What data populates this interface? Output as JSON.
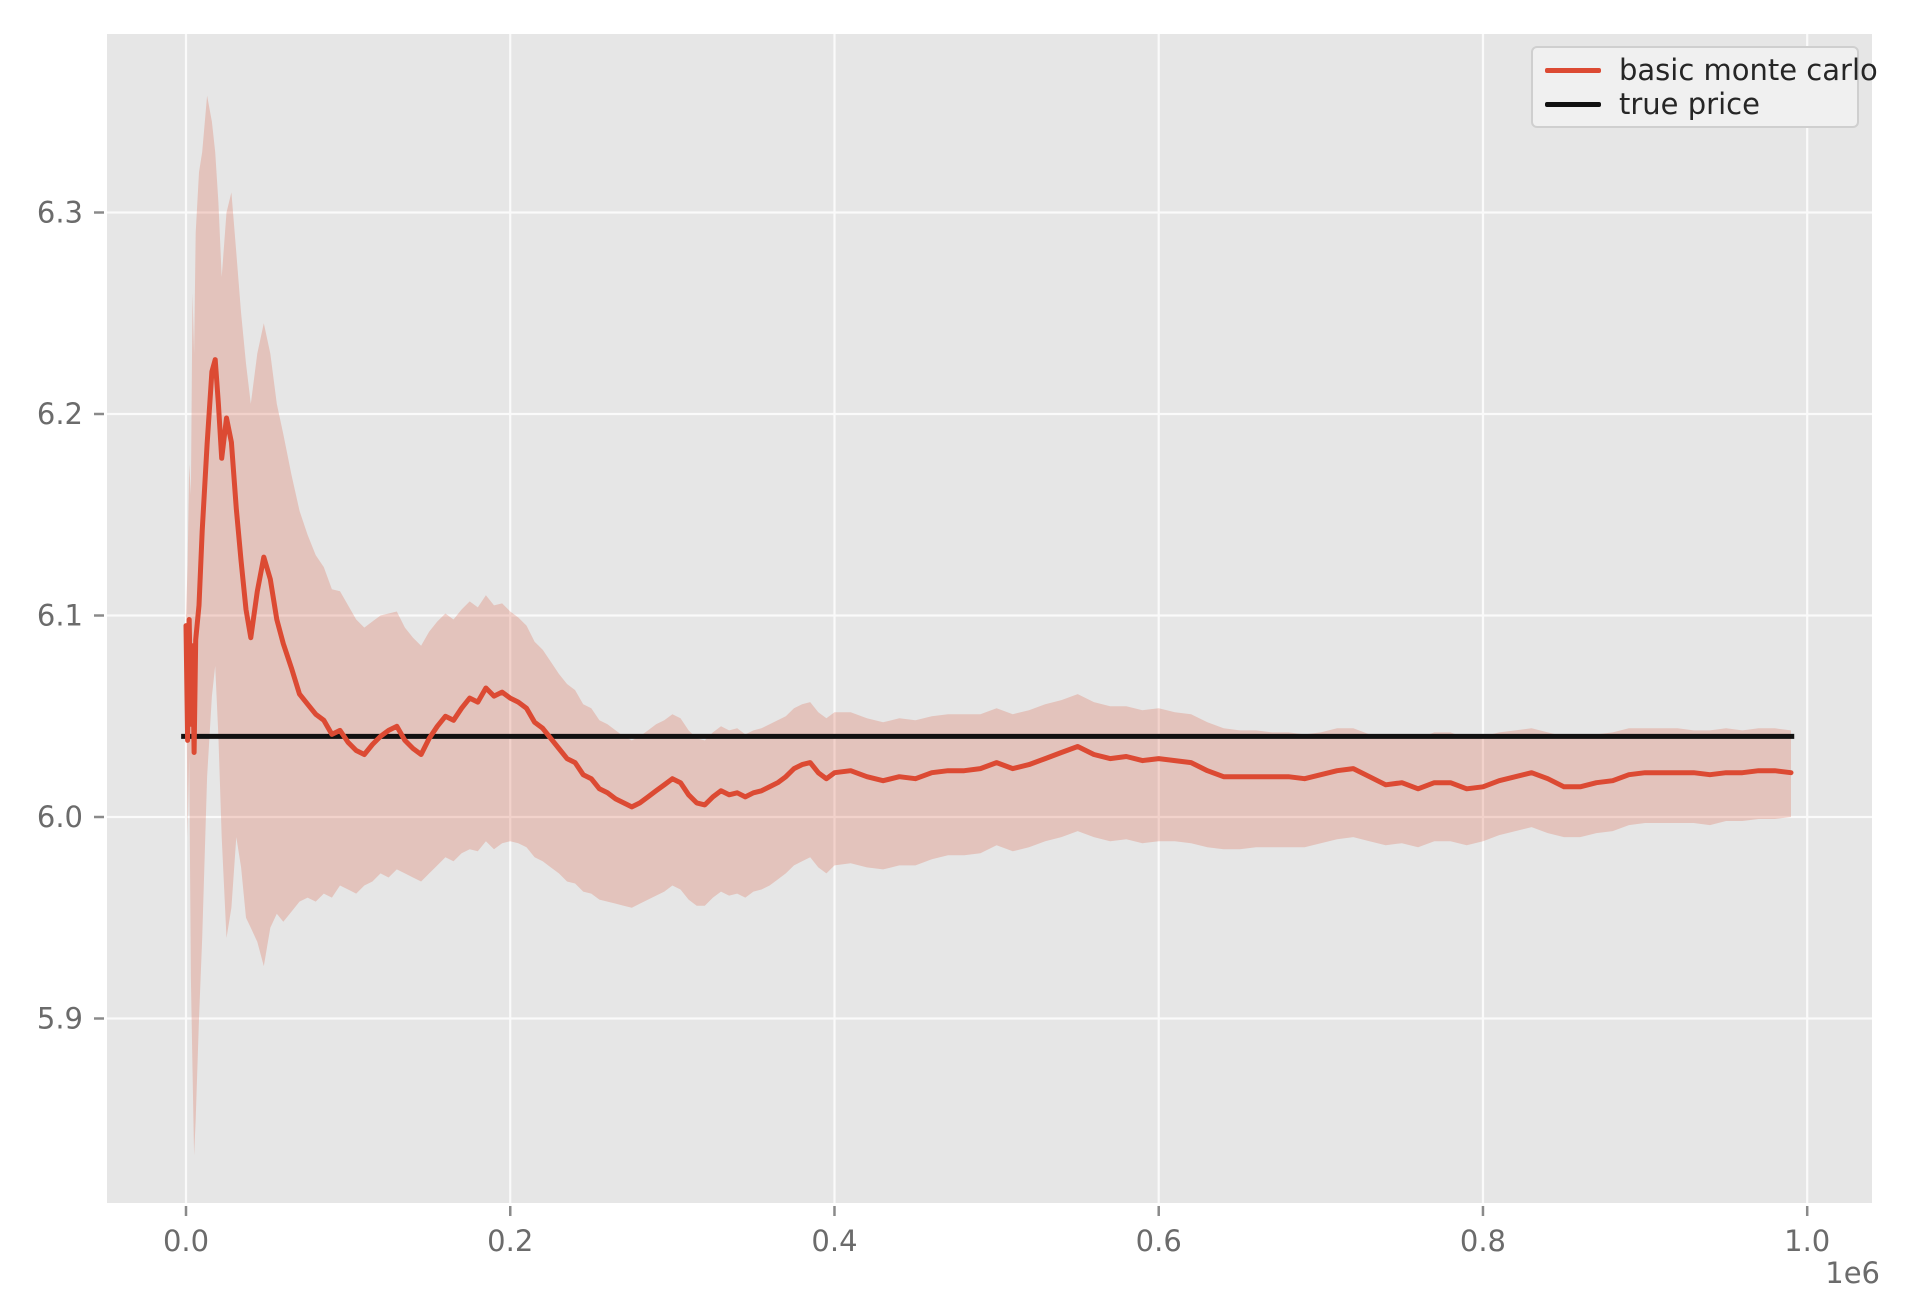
{
  "figure": {
    "background": "#ffffff",
    "axes_background": "#e6e6e6",
    "grid_color": "#fafafa",
    "tick_mark_color": "#8a8a8a",
    "tick_label_color": "#6b6b6b"
  },
  "legend": {
    "background": "#f0f0f0",
    "border_color": "#cfcfcf",
    "text_color": "#262626",
    "items": [
      {
        "label": "basic monte carlo",
        "color": "#DC4A33"
      },
      {
        "label": "true price",
        "color": "#111111"
      }
    ]
  },
  "chart_data": {
    "type": "line",
    "title": "",
    "xlabel": "",
    "ylabel": "",
    "x_scale_label": "1e6",
    "xlim": [
      -0.048,
      1.04
    ],
    "ylim": [
      5.808,
      6.389
    ],
    "x_ticks": [
      0.0,
      0.2,
      0.4,
      0.6,
      0.8,
      1.0
    ],
    "x_tick_labels": [
      "0.0",
      "0.2",
      "0.4",
      "0.6",
      "0.8",
      "1.0"
    ],
    "y_ticks": [
      5.9,
      6.0,
      6.1,
      6.2,
      6.3
    ],
    "y_tick_labels": [
      "5.9",
      "6.0",
      "6.1",
      "6.2",
      "6.3"
    ],
    "grid": true,
    "legend_position": "upper right",
    "true_price": 6.04,
    "series": [
      {
        "name": "basic monte carlo",
        "color": "#DC4A33",
        "line_width": 5,
        "x": [
          0.0,
          0.001,
          0.002,
          0.003,
          0.004,
          0.005,
          0.006,
          0.008,
          0.01,
          0.013,
          0.016,
          0.018,
          0.02,
          0.022,
          0.025,
          0.028,
          0.031,
          0.034,
          0.037,
          0.04,
          0.044,
          0.048,
          0.052,
          0.056,
          0.06,
          0.065,
          0.07,
          0.075,
          0.08,
          0.085,
          0.09,
          0.095,
          0.1,
          0.105,
          0.11,
          0.115,
          0.12,
          0.125,
          0.13,
          0.135,
          0.14,
          0.145,
          0.15,
          0.155,
          0.16,
          0.165,
          0.17,
          0.175,
          0.18,
          0.185,
          0.19,
          0.195,
          0.2,
          0.205,
          0.21,
          0.215,
          0.22,
          0.225,
          0.23,
          0.235,
          0.24,
          0.245,
          0.25,
          0.255,
          0.26,
          0.265,
          0.27,
          0.275,
          0.28,
          0.285,
          0.29,
          0.295,
          0.3,
          0.305,
          0.31,
          0.315,
          0.32,
          0.325,
          0.33,
          0.335,
          0.34,
          0.345,
          0.35,
          0.355,
          0.36,
          0.365,
          0.37,
          0.375,
          0.38,
          0.385,
          0.39,
          0.395,
          0.4,
          0.41,
          0.42,
          0.43,
          0.44,
          0.45,
          0.46,
          0.47,
          0.48,
          0.49,
          0.5,
          0.51,
          0.52,
          0.53,
          0.54,
          0.55,
          0.56,
          0.57,
          0.58,
          0.59,
          0.6,
          0.61,
          0.62,
          0.63,
          0.64,
          0.65,
          0.66,
          0.67,
          0.68,
          0.69,
          0.7,
          0.71,
          0.72,
          0.73,
          0.74,
          0.75,
          0.76,
          0.77,
          0.78,
          0.79,
          0.8,
          0.81,
          0.82,
          0.83,
          0.84,
          0.85,
          0.86,
          0.87,
          0.88,
          0.89,
          0.9,
          0.91,
          0.92,
          0.93,
          0.94,
          0.95,
          0.96,
          0.97,
          0.98,
          0.99
        ],
        "y": [
          6.095,
          6.038,
          6.098,
          6.046,
          6.085,
          6.032,
          6.088,
          6.105,
          6.142,
          6.185,
          6.221,
          6.227,
          6.205,
          6.178,
          6.198,
          6.186,
          6.153,
          6.127,
          6.103,
          6.089,
          6.112,
          6.129,
          6.118,
          6.098,
          6.086,
          6.074,
          6.061,
          6.056,
          6.051,
          6.048,
          6.041,
          6.043,
          6.037,
          6.033,
          6.031,
          6.036,
          6.04,
          6.043,
          6.045,
          6.038,
          6.034,
          6.031,
          6.039,
          6.045,
          6.05,
          6.048,
          6.054,
          6.059,
          6.057,
          6.064,
          6.06,
          6.062,
          6.059,
          6.057,
          6.054,
          6.047,
          6.044,
          6.039,
          6.034,
          6.029,
          6.027,
          6.021,
          6.019,
          6.014,
          6.012,
          6.009,
          6.007,
          6.005,
          6.007,
          6.01,
          6.013,
          6.016,
          6.019,
          6.017,
          6.011,
          6.007,
          6.006,
          6.01,
          6.013,
          6.011,
          6.012,
          6.01,
          6.012,
          6.013,
          6.015,
          6.017,
          6.02,
          6.024,
          6.026,
          6.027,
          6.022,
          6.019,
          6.022,
          6.023,
          6.02,
          6.018,
          6.02,
          6.019,
          6.022,
          6.023,
          6.023,
          6.024,
          6.027,
          6.024,
          6.026,
          6.029,
          6.032,
          6.035,
          6.031,
          6.029,
          6.03,
          6.028,
          6.029,
          6.028,
          6.027,
          6.023,
          6.02,
          6.02,
          6.02,
          6.02,
          6.02,
          6.019,
          6.021,
          6.023,
          6.024,
          6.02,
          6.016,
          6.017,
          6.014,
          6.017,
          6.017,
          6.014,
          6.015,
          6.018,
          6.02,
          6.022,
          6.019,
          6.015,
          6.015,
          6.017,
          6.018,
          6.021,
          6.022,
          6.022,
          6.022,
          6.022,
          6.021,
          6.022,
          6.022,
          6.023,
          6.023,
          6.022
        ],
        "band": {
          "color": "#DD5C40",
          "opacity": 0.25,
          "upper": [
            6.1,
            6.125,
            6.175,
            6.16,
            6.26,
            6.23,
            6.29,
            6.32,
            6.33,
            6.358,
            6.345,
            6.33,
            6.305,
            6.268,
            6.3,
            6.31,
            6.28,
            6.25,
            6.225,
            6.205,
            6.23,
            6.245,
            6.23,
            6.205,
            6.19,
            6.17,
            6.152,
            6.14,
            6.13,
            6.124,
            6.113,
            6.112,
            6.105,
            6.098,
            6.094,
            6.097,
            6.1,
            6.101,
            6.102,
            6.094,
            6.089,
            6.085,
            6.092,
            6.097,
            6.101,
            6.098,
            6.103,
            6.107,
            6.104,
            6.11,
            6.105,
            6.106,
            6.102,
            6.099,
            6.095,
            6.087,
            6.083,
            6.077,
            6.071,
            6.066,
            6.063,
            6.056,
            6.054,
            6.048,
            6.046,
            6.043,
            6.04,
            6.038,
            6.04,
            6.043,
            6.046,
            6.048,
            6.051,
            6.049,
            6.043,
            6.039,
            6.038,
            6.042,
            6.045,
            6.043,
            6.044,
            6.041,
            6.043,
            6.044,
            6.046,
            6.048,
            6.05,
            6.054,
            6.056,
            6.057,
            6.052,
            6.049,
            6.052,
            6.052,
            6.049,
            6.047,
            6.049,
            6.048,
            6.05,
            6.051,
            6.051,
            6.051,
            6.054,
            6.051,
            6.053,
            6.056,
            6.058,
            6.061,
            6.057,
            6.055,
            6.055,
            6.053,
            6.054,
            6.052,
            6.051,
            6.047,
            6.044,
            6.043,
            6.043,
            6.042,
            6.042,
            6.041,
            6.042,
            6.044,
            6.044,
            6.041,
            6.04,
            6.041,
            6.039,
            6.042,
            6.042,
            6.039,
            6.04,
            6.042,
            6.043,
            6.044,
            6.042,
            6.04,
            6.04,
            6.041,
            6.042,
            6.044,
            6.044,
            6.044,
            6.044,
            6.043,
            6.043,
            6.044,
            6.043,
            6.044,
            6.044,
            6.043
          ],
          "lower": [
            6.09,
            5.99,
            6.03,
            5.92,
            5.875,
            5.832,
            5.85,
            5.9,
            5.94,
            6.02,
            6.06,
            6.075,
            6.04,
            5.99,
            5.94,
            5.955,
            5.99,
            5.975,
            5.95,
            5.945,
            5.938,
            5.926,
            5.945,
            5.952,
            5.948,
            5.953,
            5.958,
            5.96,
            5.958,
            5.962,
            5.96,
            5.966,
            5.964,
            5.962,
            5.966,
            5.968,
            5.972,
            5.97,
            5.974,
            5.972,
            5.97,
            5.968,
            5.972,
            5.976,
            5.98,
            5.978,
            5.982,
            5.984,
            5.983,
            5.988,
            5.984,
            5.987,
            5.988,
            5.987,
            5.985,
            5.98,
            5.978,
            5.975,
            5.972,
            5.968,
            5.967,
            5.963,
            5.962,
            5.959,
            5.958,
            5.957,
            5.956,
            5.955,
            5.957,
            5.959,
            5.961,
            5.963,
            5.966,
            5.964,
            5.959,
            5.956,
            5.956,
            5.96,
            5.963,
            5.961,
            5.962,
            5.96,
            5.963,
            5.964,
            5.966,
            5.969,
            5.972,
            5.976,
            5.978,
            5.98,
            5.975,
            5.972,
            5.976,
            5.977,
            5.975,
            5.974,
            5.976,
            5.976,
            5.979,
            5.981,
            5.981,
            5.982,
            5.986,
            5.983,
            5.985,
            5.988,
            5.99,
            5.993,
            5.99,
            5.988,
            5.989,
            5.987,
            5.988,
            5.988,
            5.987,
            5.985,
            5.984,
            5.984,
            5.985,
            5.985,
            5.985,
            5.985,
            5.987,
            5.989,
            5.99,
            5.988,
            5.986,
            5.987,
            5.985,
            5.988,
            5.988,
            5.986,
            5.988,
            5.991,
            5.993,
            5.995,
            5.992,
            5.99,
            5.99,
            5.992,
            5.993,
            5.996,
            5.997,
            5.997,
            5.997,
            5.997,
            5.996,
            5.998,
            5.998,
            5.999,
            5.999,
            6.0
          ]
        }
      },
      {
        "name": "true price",
        "color": "#111111",
        "line_width": 5,
        "y_const": 6.04,
        "x_start": -0.003,
        "x_end": 0.992
      }
    ]
  }
}
